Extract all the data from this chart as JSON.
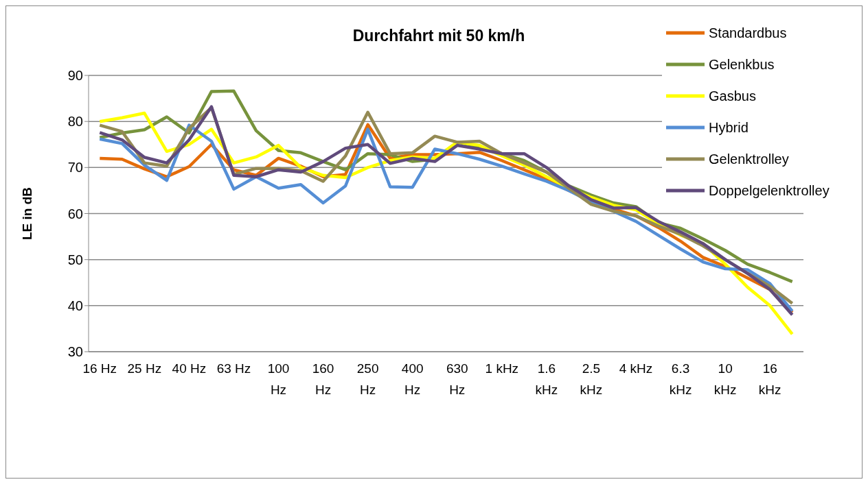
{
  "chart_data": {
    "type": "line",
    "title": "Durchfahrt mit 50 km/h",
    "ylabel": "LE in dB",
    "categories": [
      "16 Hz",
      null,
      "25 Hz",
      null,
      "40 Hz",
      null,
      "63 Hz",
      null,
      "100 Hz",
      null,
      "160 Hz",
      null,
      "250 Hz",
      null,
      "400 Hz",
      null,
      "630 Hz",
      null,
      "1 kHz",
      null,
      "1.6 kHz",
      null,
      "2.5 kHz",
      null,
      "4 kHz",
      null,
      "6.3 kHz",
      null,
      "10 kHz",
      null,
      "16 kHz",
      null
    ],
    "series": [
      {
        "name": "Standardbus",
        "color": "#e46c0a",
        "values": [
          72,
          71.8,
          69.7,
          68,
          70.2,
          75,
          69.5,
          68.3,
          72,
          70.3,
          68,
          68.5,
          79.3,
          72,
          72.8,
          72.8,
          73,
          73.3,
          71.5,
          69.5,
          67.5,
          65,
          63,
          61,
          59.5,
          57,
          54,
          50.5,
          48.5,
          46,
          43.5,
          38.5
        ]
      },
      {
        "name": "Gelenkbus",
        "color": "#77933c",
        "values": [
          76.5,
          77.5,
          78.2,
          81,
          77.5,
          86.5,
          86.6,
          78,
          73.7,
          73.2,
          71.3,
          69.5,
          73,
          72.8,
          71.3,
          71.8,
          75.5,
          74.5,
          73,
          71.5,
          69,
          66,
          64,
          62.3,
          61.5,
          58,
          56.8,
          54.5,
          52,
          49,
          47.2,
          45.2
        ]
      },
      {
        "name": "Gasbus",
        "color": "#ffff00",
        "values": [
          80,
          80.8,
          81.8,
          73.5,
          75,
          78.3,
          71,
          72.3,
          74.8,
          70,
          68.3,
          67.8,
          70,
          71.5,
          72.3,
          72,
          75.5,
          74.8,
          72.5,
          70.5,
          68,
          65.5,
          63.5,
          61.8,
          60.8,
          57.8,
          55.3,
          53.5,
          49,
          44,
          40,
          33.8
        ]
      },
      {
        "name": "Hybrid",
        "color": "#558ed5",
        "values": [
          76.2,
          75.2,
          70.5,
          67.2,
          79.2,
          75.7,
          65.3,
          68,
          65.5,
          66.3,
          62.3,
          66,
          78.3,
          65.8,
          65.7,
          74,
          73,
          71.8,
          70.3,
          68.6,
          67,
          65,
          62.5,
          60.5,
          58.3,
          55.3,
          52.3,
          49.5,
          48,
          47.8,
          44.8,
          38.8
        ]
      },
      {
        "name": "Gelenktrolley",
        "color": "#948a54",
        "values": [
          79.2,
          77.8,
          71,
          70.3,
          78.5,
          83,
          68.5,
          69.8,
          69.8,
          69.3,
          67,
          72.5,
          82,
          73,
          73.2,
          76.8,
          75.5,
          75.7,
          73,
          71,
          69,
          65.5,
          62,
          60.5,
          59.5,
          57.3,
          55.5,
          53,
          50,
          47,
          44.2,
          40.5
        ]
      },
      {
        "name": "Doppelgelenktrolley",
        "color": "#604a7b",
        "values": [
          77.6,
          76,
          72.2,
          71,
          76,
          83.2,
          68.3,
          68,
          69.5,
          69,
          71.3,
          74.2,
          75,
          70.9,
          72,
          71.3,
          74.8,
          74,
          73,
          73,
          70,
          66,
          63,
          61.2,
          61.3,
          58.3,
          56,
          53.5,
          50,
          47,
          43.5,
          38
        ]
      }
    ],
    "ylim": [
      30,
      90
    ],
    "yticks": [
      30,
      40,
      50,
      60,
      70,
      80,
      90
    ],
    "grid": "y",
    "legend": "right",
    "marker": "none",
    "line_style": "solid"
  }
}
